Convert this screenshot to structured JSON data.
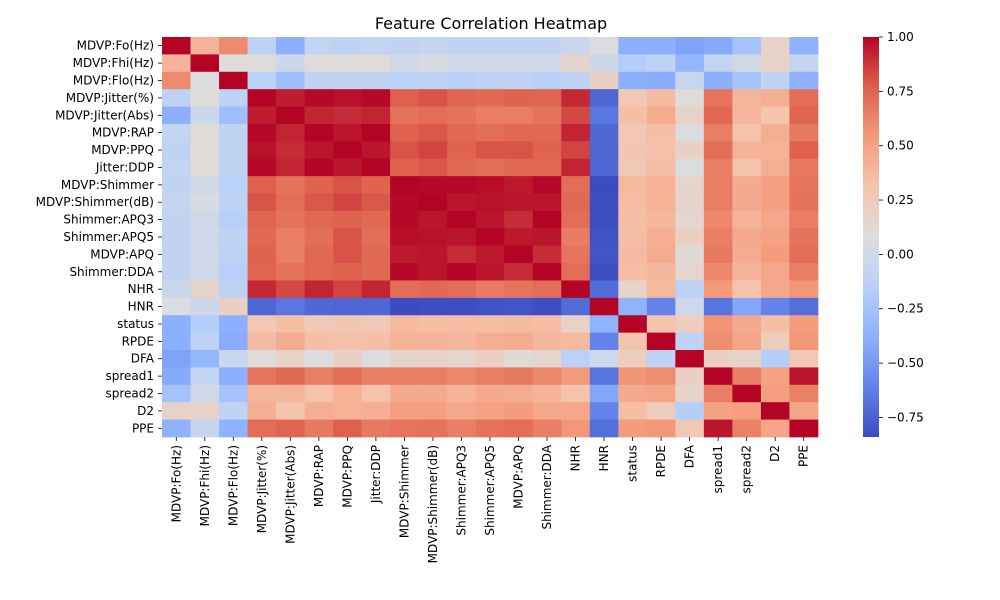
{
  "chart_data": {
    "type": "heatmap",
    "title": "Feature Correlation Heatmap",
    "xlabel": "",
    "ylabel": "",
    "colormap": "coolwarm",
    "colorbar": {
      "min": -0.84,
      "max": 1.0,
      "ticks": [
        1.0,
        0.75,
        0.5,
        0.25,
        0.0,
        -0.25,
        -0.5,
        -0.75
      ],
      "tick_labels": [
        "1.00",
        "0.75",
        "0.50",
        "0.25",
        "0.00",
        "−0.25",
        "−0.50",
        "−0.75"
      ]
    },
    "labels": [
      "MDVP:Fo(Hz)",
      "MDVP:Fhi(Hz)",
      "MDVP:Flo(Hz)",
      "MDVP:Jitter(%)",
      "MDVP:Jitter(Abs)",
      "MDVP:RAP",
      "MDVP:PPQ",
      "Jitter:DDP",
      "MDVP:Shimmer",
      "MDVP:Shimmer(dB)",
      "Shimmer:APQ3",
      "Shimmer:APQ5",
      "MDVP:APQ",
      "Shimmer:DDA",
      "NHR",
      "HNR",
      "status",
      "RPDE",
      "DFA",
      "spread1",
      "spread2",
      "D2",
      "PPE"
    ],
    "matrix": [
      [
        1.0,
        0.4,
        0.6,
        -0.12,
        -0.38,
        -0.08,
        -0.11,
        -0.08,
        -0.1,
        -0.07,
        -0.09,
        -0.09,
        -0.09,
        -0.09,
        -0.04,
        0.06,
        -0.38,
        -0.38,
        -0.45,
        -0.41,
        -0.25,
        0.18,
        -0.37
      ],
      [
        0.4,
        1.0,
        0.08,
        0.1,
        -0.03,
        0.1,
        0.1,
        0.1,
        0.0,
        0.04,
        -0.01,
        -0.01,
        0.0,
        -0.01,
        0.16,
        -0.02,
        -0.17,
        -0.11,
        -0.34,
        -0.08,
        -0.0,
        0.18,
        -0.07
      ],
      [
        0.6,
        0.08,
        1.0,
        -0.14,
        -0.28,
        -0.1,
        -0.1,
        -0.1,
        -0.14,
        -0.12,
        -0.15,
        -0.1,
        -0.11,
        -0.15,
        -0.11,
        0.21,
        -0.38,
        -0.4,
        -0.05,
        -0.39,
        -0.24,
        -0.1,
        -0.37
      ],
      [
        -0.12,
        0.1,
        -0.14,
        1.0,
        0.94,
        0.99,
        0.97,
        0.99,
        0.77,
        0.8,
        0.75,
        0.73,
        0.76,
        0.75,
        0.91,
        -0.73,
        0.28,
        0.36,
        0.1,
        0.69,
        0.39,
        0.43,
        0.72
      ],
      [
        -0.38,
        -0.03,
        -0.28,
        0.94,
        1.0,
        0.92,
        0.9,
        0.92,
        0.7,
        0.72,
        0.7,
        0.65,
        0.65,
        0.7,
        0.83,
        -0.66,
        0.34,
        0.44,
        0.18,
        0.74,
        0.39,
        0.31,
        0.75
      ],
      [
        -0.08,
        0.1,
        -0.1,
        0.99,
        0.92,
        1.0,
        0.96,
        1.0,
        0.76,
        0.79,
        0.74,
        0.71,
        0.74,
        0.74,
        0.92,
        -0.72,
        0.27,
        0.34,
        0.06,
        0.65,
        0.32,
        0.43,
        0.67
      ],
      [
        -0.11,
        0.1,
        -0.1,
        0.97,
        0.9,
        0.96,
        1.0,
        0.96,
        0.8,
        0.84,
        0.76,
        0.8,
        0.8,
        0.76,
        0.84,
        -0.73,
        0.29,
        0.33,
        0.2,
        0.72,
        0.41,
        0.41,
        0.77
      ],
      [
        -0.08,
        0.1,
        -0.1,
        0.99,
        0.92,
        1.0,
        0.96,
        1.0,
        0.76,
        0.79,
        0.74,
        0.71,
        0.74,
        0.74,
        0.92,
        -0.72,
        0.27,
        0.34,
        0.06,
        0.65,
        0.32,
        0.43,
        0.67
      ],
      [
        -0.1,
        0.0,
        -0.14,
        0.77,
        0.7,
        0.76,
        0.8,
        0.76,
        1.0,
        0.99,
        0.99,
        0.98,
        0.95,
        0.99,
        0.72,
        -0.84,
        0.37,
        0.41,
        0.16,
        0.65,
        0.45,
        0.51,
        0.69
      ],
      [
        -0.07,
        0.04,
        -0.12,
        0.8,
        0.72,
        0.79,
        0.84,
        0.79,
        0.99,
        1.0,
        0.96,
        0.97,
        0.96,
        0.96,
        0.74,
        -0.83,
        0.35,
        0.41,
        0.17,
        0.65,
        0.45,
        0.51,
        0.7
      ],
      [
        -0.09,
        -0.01,
        -0.15,
        0.75,
        0.7,
        0.74,
        0.76,
        0.74,
        0.99,
        0.96,
        1.0,
        0.96,
        0.9,
        1.0,
        0.72,
        -0.83,
        0.35,
        0.38,
        0.15,
        0.61,
        0.4,
        0.47,
        0.65
      ],
      [
        -0.09,
        -0.01,
        -0.1,
        0.73,
        0.65,
        0.71,
        0.8,
        0.71,
        0.98,
        0.97,
        0.96,
        1.0,
        0.95,
        0.96,
        0.66,
        -0.81,
        0.35,
        0.43,
        0.21,
        0.65,
        0.46,
        0.5,
        0.7
      ],
      [
        -0.09,
        0.0,
        -0.11,
        0.76,
        0.65,
        0.74,
        0.8,
        0.74,
        0.95,
        0.96,
        0.9,
        0.95,
        1.0,
        0.9,
        0.69,
        -0.8,
        0.36,
        0.44,
        0.11,
        0.67,
        0.44,
        0.53,
        0.72
      ],
      [
        -0.09,
        -0.01,
        -0.15,
        0.75,
        0.7,
        0.74,
        0.76,
        0.74,
        0.99,
        0.96,
        1.0,
        0.96,
        0.9,
        1.0,
        0.72,
        -0.83,
        0.35,
        0.38,
        0.15,
        0.61,
        0.4,
        0.47,
        0.65
      ],
      [
        -0.04,
        0.16,
        -0.11,
        0.91,
        0.83,
        0.92,
        0.84,
        0.92,
        0.72,
        0.74,
        0.72,
        0.66,
        0.69,
        0.72,
        1.0,
        -0.71,
        0.19,
        0.37,
        -0.13,
        0.54,
        0.32,
        0.47,
        0.55
      ],
      [
        0.06,
        -0.02,
        0.21,
        -0.73,
        -0.66,
        -0.72,
        -0.73,
        -0.72,
        -0.84,
        -0.83,
        -0.83,
        -0.81,
        -0.8,
        -0.83,
        -0.71,
        1.0,
        -0.36,
        -0.6,
        -0.01,
        -0.67,
        -0.43,
        -0.6,
        -0.69
      ],
      [
        -0.38,
        -0.17,
        -0.38,
        0.28,
        0.34,
        0.27,
        0.29,
        0.27,
        0.37,
        0.35,
        0.35,
        0.35,
        0.36,
        0.35,
        0.19,
        -0.36,
        1.0,
        0.31,
        0.23,
        0.56,
        0.45,
        0.34,
        0.53
      ],
      [
        -0.38,
        -0.11,
        -0.4,
        0.36,
        0.44,
        0.34,
        0.33,
        0.34,
        0.41,
        0.41,
        0.38,
        0.43,
        0.44,
        0.38,
        0.37,
        -0.6,
        0.31,
        1.0,
        -0.11,
        0.59,
        0.48,
        0.24,
        0.55
      ],
      [
        -0.45,
        -0.34,
        -0.05,
        0.1,
        0.18,
        0.06,
        0.2,
        0.06,
        0.16,
        0.17,
        0.15,
        0.21,
        0.11,
        0.15,
        -0.13,
        -0.01,
        0.23,
        -0.11,
        1.0,
        0.2,
        0.17,
        -0.17,
        0.27
      ],
      [
        -0.41,
        -0.08,
        -0.39,
        0.69,
        0.74,
        0.65,
        0.72,
        0.65,
        0.65,
        0.65,
        0.61,
        0.65,
        0.67,
        0.61,
        0.54,
        -0.67,
        0.56,
        0.59,
        0.2,
        1.0,
        0.65,
        0.5,
        0.96
      ],
      [
        -0.25,
        -0.0,
        -0.24,
        0.39,
        0.39,
        0.32,
        0.41,
        0.32,
        0.45,
        0.45,
        0.4,
        0.46,
        0.44,
        0.4,
        0.32,
        -0.43,
        0.45,
        0.48,
        0.17,
        0.65,
        1.0,
        0.52,
        0.64
      ],
      [
        0.18,
        0.18,
        -0.1,
        0.43,
        0.31,
        0.43,
        0.41,
        0.43,
        0.51,
        0.51,
        0.47,
        0.5,
        0.53,
        0.47,
        0.47,
        -0.6,
        0.34,
        0.24,
        -0.17,
        0.5,
        0.52,
        1.0,
        0.48
      ],
      [
        -0.37,
        -0.07,
        -0.37,
        0.72,
        0.75,
        0.67,
        0.77,
        0.67,
        0.69,
        0.7,
        0.65,
        0.7,
        0.72,
        0.65,
        0.55,
        -0.69,
        0.53,
        0.55,
        0.27,
        0.96,
        0.64,
        0.48,
        1.0
      ]
    ]
  }
}
